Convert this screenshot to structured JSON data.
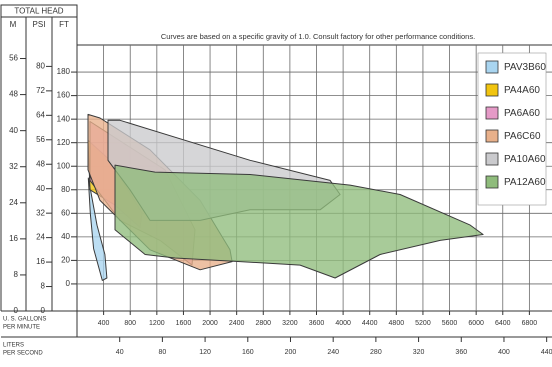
{
  "chart_data": {
    "type": "area-polygon",
    "head_label": "TOTAL HEAD",
    "axis_headers": [
      "M",
      "PSI",
      "FT"
    ],
    "subtitle": "Curves are based on a specific gravity of 1.0. Consult factory for other performance conditions.",
    "xlabel": [
      "U. S. GALLONS",
      "PER MINUTE"
    ],
    "x2label": [
      "LITERS",
      "PER SECOND"
    ],
    "xlim": [
      0,
      7140
    ],
    "xticks": [
      400,
      800,
      1200,
      1600,
      2000,
      2400,
      2800,
      3200,
      3600,
      4000,
      4400,
      4800,
      5200,
      5600,
      6000,
      6400,
      6800
    ],
    "x2lim": [
      0,
      445
    ],
    "x2ticks": [
      40,
      80,
      120,
      160,
      200,
      240,
      280,
      320,
      360,
      400,
      440
    ],
    "ylim": [
      -23,
      203
    ],
    "yticks": [
      0,
      20,
      40,
      60,
      80,
      100,
      120,
      140,
      160,
      180
    ],
    "psi_lim": [
      0,
      87
    ],
    "psi_ticks": [
      0,
      8,
      16,
      24,
      32,
      40,
      48,
      56,
      64,
      72,
      80
    ],
    "m_lim": [
      0,
      59
    ],
    "m_ticks": [
      0,
      8,
      16,
      24,
      32,
      40,
      48,
      56
    ],
    "grid": true,
    "legend": "upper right",
    "series": [
      {
        "name": "PAV3B60",
        "color": "#a9d5f0",
        "x": [
          170,
          300,
          420,
          450,
          380,
          250,
          200
        ],
        "values": [
          90,
          50,
          25,
          5,
          3,
          30,
          60
        ]
      },
      {
        "name": "PA4A60",
        "color": "#f1c40f",
        "x": [
          165,
          496,
          722,
          977,
          947,
          571,
          195
        ],
        "values": [
          122,
          105,
          84,
          60,
          48,
          67,
          80
        ]
      },
      {
        "name": "PA6A60",
        "color": "#e59ac7",
        "x": [
          195,
          1323,
          1774,
          1729,
          1248,
          647,
          195
        ],
        "values": [
          138,
          97,
          46,
          16,
          37,
          54,
          88
        ]
      },
      {
        "name": "PA6C60",
        "color": "#e8b08a",
        "x": [
          165,
          346,
          1098,
          1850,
          2300,
          2331,
          1850,
          1098,
          346,
          165
        ],
        "values": [
          144,
          141,
          114,
          71,
          29,
          19,
          12,
          29,
          71,
          97
        ]
      },
      {
        "name": "PA10A60",
        "color": "#cacacd",
        "x": [
          466,
          647,
          2602,
          3805,
          3955,
          3654,
          2602,
          1850,
          1098,
          797,
          466
        ],
        "values": [
          139,
          139,
          105,
          88,
          76,
          63,
          63,
          54,
          54,
          80,
          105
        ]
      },
      {
        "name": "PA12A60",
        "color": "#8fbc7c",
        "x": [
          571,
          1173,
          2602,
          4105,
          4857,
          5910,
          6105,
          5459,
          4556,
          3880,
          3353,
          2451,
          1474,
          1023,
          571
        ],
        "values": [
          101,
          95,
          93,
          84,
          76,
          50,
          42,
          37,
          25,
          5,
          16,
          19,
          22,
          25,
          46
        ]
      }
    ]
  }
}
